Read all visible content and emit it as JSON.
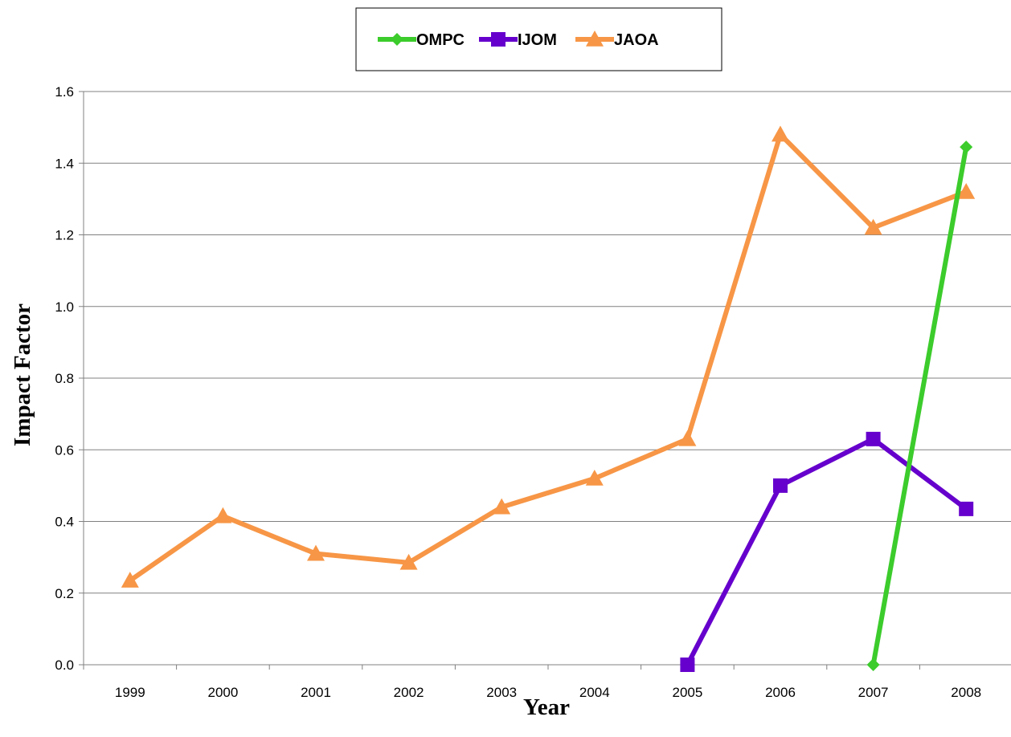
{
  "chart_data": {
    "type": "line",
    "title": "",
    "xlabel": "Year",
    "ylabel": "Impact Factor",
    "categories": [
      "1999",
      "2000",
      "2001",
      "2002",
      "2003",
      "2004",
      "2005",
      "2006",
      "2007",
      "2008"
    ],
    "ylim": [
      0,
      1.6
    ],
    "yticks": [
      "0.0",
      "0.2",
      "0.4",
      "0.6",
      "0.8",
      "1.0",
      "1.2",
      "1.4",
      "1.6"
    ],
    "grid": "horizontal",
    "legend_position": "top",
    "series": [
      {
        "name": "OMPC",
        "color": "#3ccc2c",
        "marker": "diamond",
        "values": [
          null,
          null,
          null,
          null,
          null,
          null,
          null,
          null,
          0.0,
          1.445
        ]
      },
      {
        "name": "IJOM",
        "color": "#6600cc",
        "marker": "square",
        "values": [
          null,
          null,
          null,
          null,
          null,
          null,
          0.0,
          0.5,
          0.63,
          0.435
        ]
      },
      {
        "name": "JAOA",
        "color": "#f79646",
        "marker": "triangle",
        "values": [
          0.235,
          0.415,
          0.31,
          0.285,
          0.44,
          0.52,
          0.63,
          1.48,
          1.22,
          1.32
        ]
      }
    ]
  }
}
